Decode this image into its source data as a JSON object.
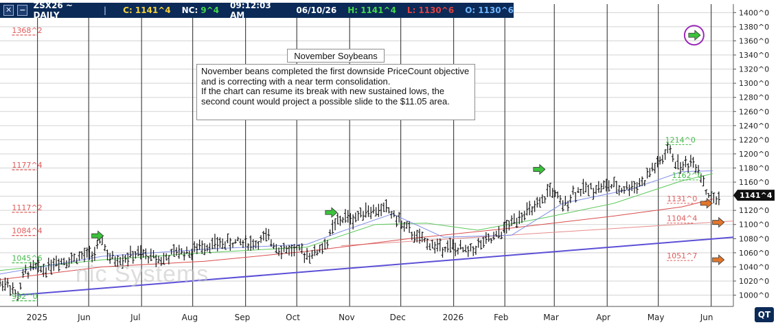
{
  "toolbar": {
    "symbol": "ZSX26 ~ DAILY",
    "close_label": "C:",
    "close_value": "1141^4",
    "net_label": "NC:",
    "net_value": "9^4",
    "time": "09:12:03 AM",
    "date": "06/10/26",
    "high_label": "H:",
    "high_value": "1141^4",
    "low_label": "L:",
    "low_value": "1130^6",
    "open_label": "O:",
    "open_value": "1130^6",
    "colors": {
      "bg": "#0b2a57",
      "close": "#f5d33a",
      "net": "#43d94b",
      "high": "#43d94b",
      "low": "#e24040",
      "open": "#6fb5ff"
    }
  },
  "watermark": "nic Systems",
  "logo": "QT",
  "annotation": {
    "title": "November Soybeans",
    "text": "November beans completed the first downside PriceCount objective and is correcting with a near term consolidation.\nIf the chart can resume its break with new sustained lows, the second count would project a possible slide to the $11.05 area."
  },
  "chart_data": {
    "type": "ohlc",
    "ylim": [
      984,
      1412
    ],
    "y_ticks": [
      1000,
      1020,
      1040,
      1060,
      1080,
      1100,
      1120,
      1140,
      1160,
      1180,
      1200,
      1220,
      1240,
      1260,
      1280,
      1300,
      1320,
      1340,
      1360,
      1380,
      1400
    ],
    "y_tick_labels": [
      "1000^0",
      "1020^0",
      "1040^0",
      "1060^0",
      "1080^0",
      "1100^0",
      "1120^0",
      "1140^0",
      "1160^0",
      "1180^0",
      "1200^0",
      "1220^0",
      "1240^0",
      "1260^0",
      "1280^0",
      "1300^0",
      "1320^0",
      "1340^0",
      "1360^0",
      "1380^0",
      "1400^0"
    ],
    "x_labels": [
      "2025",
      "Jun",
      "Jul",
      "Aug",
      "Sep",
      "Oct",
      "Nov",
      "Dec",
      "2026",
      "Feb",
      "Mar",
      "Apr",
      "May",
      "Jun"
    ],
    "x_label_day": [
      22,
      52,
      83,
      113,
      144,
      174,
      205,
      235,
      266,
      296,
      325,
      356,
      386,
      417
    ],
    "x_range_days": [
      0,
      430
    ],
    "price_path": [
      [
        0,
        1016
      ],
      [
        5,
        1018
      ],
      [
        10,
        996
      ],
      [
        14,
        1030
      ],
      [
        20,
        1040
      ],
      [
        26,
        1036
      ],
      [
        32,
        1048
      ],
      [
        40,
        1050
      ],
      [
        48,
        1055
      ],
      [
        56,
        1060
      ],
      [
        60,
        1080
      ],
      [
        64,
        1050
      ],
      [
        72,
        1052
      ],
      [
        80,
        1058
      ],
      [
        88,
        1055
      ],
      [
        96,
        1050
      ],
      [
        104,
        1062
      ],
      [
        112,
        1060
      ],
      [
        118,
        1070
      ],
      [
        126,
        1072
      ],
      [
        134,
        1074
      ],
      [
        142,
        1075
      ],
      [
        150,
        1073
      ],
      [
        156,
        1082
      ],
      [
        164,
        1066
      ],
      [
        172,
        1064
      ],
      [
        178,
        1060
      ],
      [
        184,
        1058
      ],
      [
        192,
        1075
      ],
      [
        196,
        1100
      ],
      [
        202,
        1110
      ],
      [
        208,
        1108
      ],
      [
        214,
        1122
      ],
      [
        220,
        1118
      ],
      [
        226,
        1124
      ],
      [
        232,
        1110
      ],
      [
        238,
        1095
      ],
      [
        244,
        1082
      ],
      [
        250,
        1075
      ],
      [
        256,
        1068
      ],
      [
        262,
        1070
      ],
      [
        268,
        1065
      ],
      [
        274,
        1062
      ],
      [
        282,
        1072
      ],
      [
        290,
        1080
      ],
      [
        298,
        1098
      ],
      [
        306,
        1116
      ],
      [
        312,
        1120
      ],
      [
        318,
        1130
      ],
      [
        322,
        1152
      ],
      [
        326,
        1140
      ],
      [
        330,
        1125
      ],
      [
        336,
        1145
      ],
      [
        342,
        1150
      ],
      [
        350,
        1152
      ],
      [
        358,
        1155
      ],
      [
        364,
        1150
      ],
      [
        372,
        1155
      ],
      [
        378,
        1162
      ],
      [
        382,
        1178
      ],
      [
        388,
        1190
      ],
      [
        392,
        1208
      ],
      [
        396,
        1188
      ],
      [
        400,
        1182
      ],
      [
        406,
        1190
      ],
      [
        410,
        1178
      ],
      [
        414,
        1148
      ],
      [
        418,
        1134
      ],
      [
        422,
        1138
      ]
    ],
    "ma_blue": [
      [
        0,
        1030
      ],
      [
        60,
        1055
      ],
      [
        120,
        1065
      ],
      [
        180,
        1072
      ],
      [
        200,
        1090
      ],
      [
        230,
        1115
      ],
      [
        260,
        1082
      ],
      [
        300,
        1085
      ],
      [
        330,
        1130
      ],
      [
        370,
        1150
      ],
      [
        400,
        1175
      ],
      [
        418,
        1176
      ]
    ],
    "ma_green": [
      [
        0,
        1035
      ],
      [
        60,
        1050
      ],
      [
        120,
        1060
      ],
      [
        180,
        1068
      ],
      [
        220,
        1100
      ],
      [
        250,
        1102
      ],
      [
        280,
        1092
      ],
      [
        320,
        1110
      ],
      [
        360,
        1130
      ],
      [
        400,
        1162
      ],
      [
        418,
        1172
      ]
    ],
    "ma_red": [
      [
        0,
        1022
      ],
      [
        60,
        1040
      ],
      [
        120,
        1048
      ],
      [
        180,
        1062
      ],
      [
        240,
        1080
      ],
      [
        300,
        1095
      ],
      [
        360,
        1112
      ],
      [
        400,
        1125
      ],
      [
        418,
        1136
      ]
    ],
    "trendline_blue": [
      [
        10,
        1000
      ],
      [
        430,
        1082
      ]
    ],
    "trendline_red": [
      [
        200,
        1070
      ],
      [
        430,
        1105
      ]
    ],
    "left_levels": [
      {
        "label": "1368^2",
        "value": 1368.25,
        "color": "#e05a5a"
      },
      {
        "label": "1177^4",
        "value": 1177.5,
        "color": "#e05a5a"
      },
      {
        "label": "1117^2",
        "value": 1117.25,
        "color": "#e05a5a"
      },
      {
        "label": "1084^4",
        "value": 1084.5,
        "color": "#e05a5a"
      },
      {
        "label": "1045^6",
        "value": 1045.75,
        "color": "#44b84a"
      },
      {
        "label": "992^0",
        "value": 992,
        "color": "#44b84a"
      }
    ],
    "right_labels": [
      {
        "label": "1214^0",
        "value": 1216,
        "day": 390,
        "color": "#44b84a"
      },
      {
        "label": "1162^0",
        "value": 1166,
        "day": 394,
        "color": "#44b84a"
      },
      {
        "label": "1131^0",
        "value": 1133,
        "day": 391,
        "color": "#e05a5a"
      },
      {
        "label": "1104^4",
        "value": 1105,
        "day": 391,
        "color": "#e05a5a"
      },
      {
        "label": "1051^7",
        "value": 1052,
        "day": 391,
        "color": "#e05a5a"
      }
    ],
    "arrows": [
      {
        "day": 57,
        "value": 1084,
        "color": "#3cc23c"
      },
      {
        "day": 194,
        "value": 1117,
        "color": "#3cc23c"
      },
      {
        "day": 316,
        "value": 1178,
        "color": "#3cc23c"
      },
      {
        "day": 407,
        "value": 1368,
        "color": "#3cc23c",
        "circled": true
      },
      {
        "day": 414,
        "value": 1130,
        "color": "#e2762a"
      },
      {
        "day": 421,
        "value": 1103,
        "color": "#e2762a"
      },
      {
        "day": 421,
        "value": 1050,
        "color": "#e2762a"
      }
    ],
    "last_price": {
      "label": "1141^4",
      "value": 1141.5
    }
  }
}
